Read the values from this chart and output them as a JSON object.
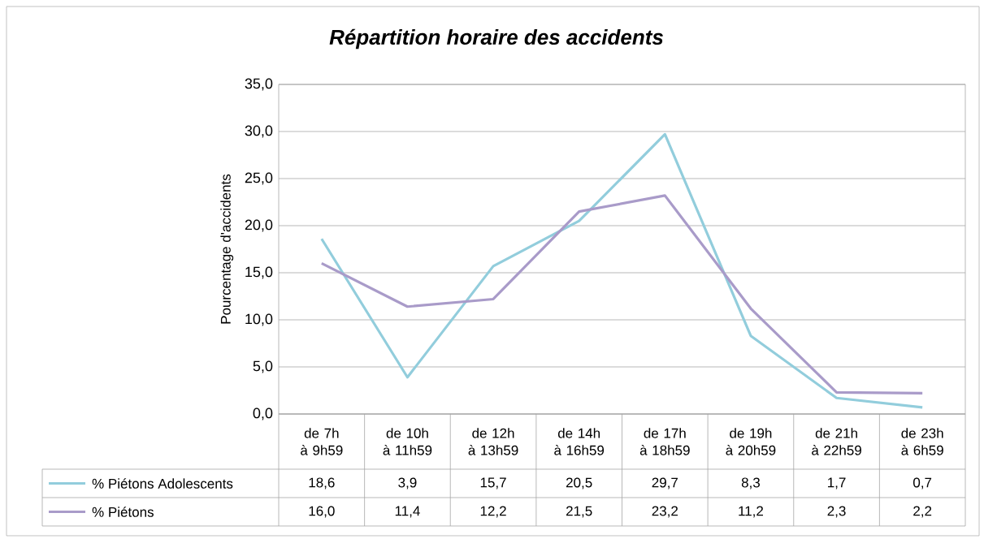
{
  "chart_data": {
    "type": "line",
    "title": "Répartition horaire des accidents",
    "ylabel": "Pourcentage d'accidents",
    "categories": [
      "de 7h à 9h59",
      "de 10h à 11h59",
      "de 12h à 13h59",
      "de 14h à 16h59",
      "de 17h à 18h59",
      "de 19h à 20h59",
      "de 21h à 22h59",
      "de 23h à 6h59"
    ],
    "series": [
      {
        "name": "% Piétons Adolescents",
        "color": "#92cddc",
        "values": [
          18.6,
          3.9,
          15.7,
          20.5,
          29.7,
          8.3,
          1.7,
          0.7
        ],
        "value_labels": [
          "18,6",
          "3,9",
          "15,7",
          "20,5",
          "29,7",
          "8,3",
          "1,7",
          "0,7"
        ]
      },
      {
        "name": "% Piétons",
        "color": "#a99bc9",
        "values": [
          16.0,
          11.4,
          12.2,
          21.5,
          23.2,
          11.2,
          2.3,
          2.2
        ],
        "value_labels": [
          "16,0",
          "11,4",
          "12,2",
          "21,5",
          "23,2",
          "11,2",
          "2,3",
          "2,2"
        ]
      }
    ],
    "ylim": [
      0,
      35
    ],
    "yticks": [
      {
        "value": 0,
        "label": "0,0"
      },
      {
        "value": 5,
        "label": "5,0"
      },
      {
        "value": 10,
        "label": "10,0"
      },
      {
        "value": 15,
        "label": "15,0"
      },
      {
        "value": 20,
        "label": "20,0"
      },
      {
        "value": 25,
        "label": "25,0"
      },
      {
        "value": 30,
        "label": "30,0"
      },
      {
        "value": 35,
        "label": "35,0"
      }
    ],
    "grid": "y",
    "legend": "left",
    "marker": "none",
    "line_style": "solid"
  }
}
